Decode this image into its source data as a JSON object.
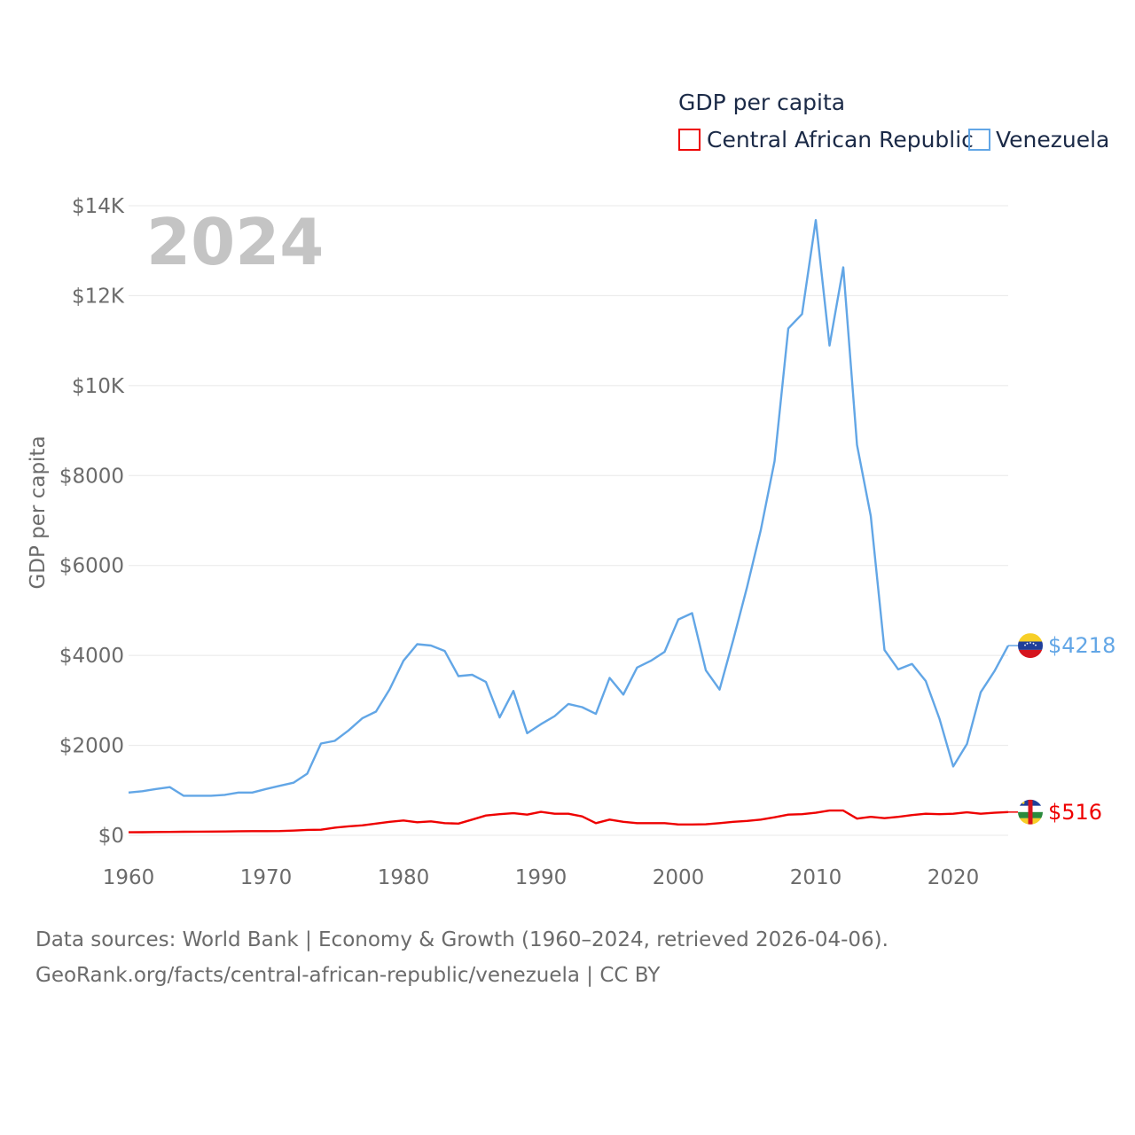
{
  "colors": {
    "car": "#ee0000",
    "venezuela": "#62a6e6",
    "grid": "#e8e8e8",
    "text": "#6b6b6b",
    "legend_text": "#1b2a47",
    "watermark": "#c4c4c4"
  },
  "legend": {
    "title": "GDP per capita",
    "items": [
      {
        "name": "Central African Republic",
        "color": "#ee0000"
      },
      {
        "name": "Venezuela",
        "color": "#62a6e6"
      }
    ]
  },
  "year_label": "2024",
  "end_labels": {
    "venezuela": "$4218",
    "car": "$516"
  },
  "footer": {
    "line1": "Data sources: World Bank | Economy & Growth (1960–2024, retrieved 2026-04-06).",
    "line2": "GeoRank.org/facts/central-african-republic/venezuela | CC BY"
  },
  "chart_data": {
    "type": "line",
    "title": "",
    "xlabel": "",
    "ylabel": "GDP per capita",
    "xlim": [
      1960,
      2024
    ],
    "ylim": [
      0,
      14000
    ],
    "x_ticks": [
      1960,
      1970,
      1980,
      1990,
      2000,
      2010,
      2020
    ],
    "x_tick_labels": [
      "1960",
      "1970",
      "1980",
      "1990",
      "2000",
      "2010",
      "2020"
    ],
    "y_ticks": [
      0,
      2000,
      4000,
      6000,
      8000,
      10000,
      12000,
      14000
    ],
    "y_tick_labels": [
      "$0",
      "$2000",
      "$4000",
      "$6000",
      "$8000",
      "$10K",
      "$12K",
      "$14K"
    ],
    "x": [
      1960,
      1961,
      1962,
      1963,
      1964,
      1965,
      1966,
      1967,
      1968,
      1969,
      1970,
      1971,
      1972,
      1973,
      1974,
      1975,
      1976,
      1977,
      1978,
      1979,
      1980,
      1981,
      1982,
      1983,
      1984,
      1985,
      1986,
      1987,
      1988,
      1989,
      1990,
      1991,
      1992,
      1993,
      1994,
      1995,
      1996,
      1997,
      1998,
      1999,
      2000,
      2001,
      2002,
      2003,
      2004,
      2005,
      2006,
      2007,
      2008,
      2009,
      2010,
      2011,
      2012,
      2013,
      2014,
      2015,
      2016,
      2017,
      2018,
      2019,
      2020,
      2021,
      2022,
      2023,
      2024
    ],
    "series": [
      {
        "name": "Central African Republic",
        "key": "car",
        "values": [
          67,
          70,
          72,
          75,
          78,
          80,
          83,
          85,
          90,
          92,
          92,
          95,
          105,
          120,
          125,
          170,
          200,
          220,
          260,
          300,
          330,
          290,
          310,
          270,
          260,
          350,
          440,
          470,
          490,
          460,
          520,
          480,
          480,
          420,
          270,
          350,
          300,
          270,
          270,
          270,
          240,
          240,
          245,
          270,
          300,
          320,
          350,
          400,
          460,
          470,
          500,
          550,
          550,
          370,
          410,
          380,
          410,
          450,
          480,
          470,
          480,
          510,
          480,
          500,
          516
        ]
      },
      {
        "name": "Venezuela",
        "key": "venezuela",
        "values": [
          950,
          980,
          1030,
          1070,
          880,
          880,
          880,
          900,
          950,
          950,
          1030,
          1100,
          1170,
          1370,
          2040,
          2100,
          2330,
          2600,
          2750,
          3250,
          3880,
          4250,
          4220,
          4100,
          3540,
          3570,
          3410,
          2620,
          3210,
          2270,
          2470,
          2650,
          2920,
          2850,
          2700,
          3500,
          3130,
          3730,
          3880,
          4080,
          4800,
          4940,
          3670,
          3240,
          4350,
          5520,
          6790,
          8320,
          11270,
          11590,
          13680,
          10890,
          12630,
          8680,
          7100,
          4120,
          3690,
          3810,
          3430,
          2590,
          1530,
          2030,
          3180,
          3650,
          4218
        ]
      }
    ]
  }
}
